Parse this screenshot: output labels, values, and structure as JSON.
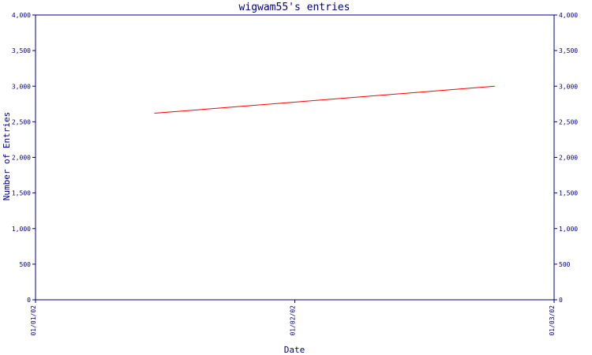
{
  "chart_data": {
    "type": "line",
    "title": "wigwam55's entries",
    "xlabel": "Date",
    "ylabel": "Number of Entries",
    "x_ticks": [
      "01/01/02",
      "01/02/02",
      "01/03/02"
    ],
    "y_ticks": [
      "0",
      "500",
      "1,000",
      "1,500",
      "2,000",
      "2,500",
      "3,000",
      "3,500",
      "4,000"
    ],
    "ylim": [
      0,
      4000
    ],
    "xlim": [
      "2002-01-01",
      "2002-01-03"
    ],
    "grid": false,
    "colors": {
      "axis": "#000080",
      "series": "#ff0000"
    },
    "series": [
      {
        "x": [
          "2002-01-01T11:00",
          "2002-01-02T18:30"
        ],
        "values": [
          2620,
          3000
        ]
      }
    ]
  }
}
